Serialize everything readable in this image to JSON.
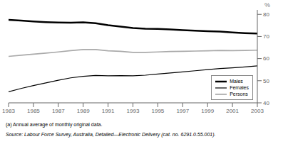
{
  "chart_data": {
    "type": "line",
    "x": [
      1983,
      1984,
      1985,
      1986,
      1987,
      1988,
      1989,
      1990,
      1991,
      1992,
      1993,
      1994,
      1995,
      1996,
      1997,
      1998,
      1999,
      2000,
      2001,
      2002,
      2003
    ],
    "series": [
      {
        "name": "Males",
        "color": "#000000",
        "values": [
          77.5,
          77.2,
          76.8,
          76.5,
          76.3,
          76.2,
          76.4,
          76.0,
          75.1,
          74.5,
          73.8,
          73.5,
          73.4,
          73.2,
          72.9,
          72.6,
          72.4,
          72.2,
          71.8,
          71.5,
          71.3
        ]
      },
      {
        "name": "Females",
        "color": "#000000",
        "values": [
          45.0,
          46.5,
          47.8,
          49.0,
          50.2,
          51.3,
          52.0,
          52.4,
          52.2,
          52.3,
          52.2,
          52.5,
          53.0,
          53.5,
          54.0,
          54.5,
          55.0,
          55.5,
          55.8,
          56.2,
          56.7
        ]
      },
      {
        "name": "Persons",
        "color": "#aaaaaa",
        "values": [
          61.0,
          61.5,
          62.0,
          62.5,
          63.0,
          63.6,
          64.1,
          64.1,
          63.5,
          63.3,
          62.8,
          62.8,
          63.0,
          63.2,
          63.3,
          63.4,
          63.5,
          63.7,
          63.6,
          63.7,
          63.8
        ]
      }
    ],
    "xlim": [
      1983,
      2003
    ],
    "xticks": [
      1983,
      1985,
      1987,
      1989,
      1991,
      1993,
      1995,
      1997,
      1999,
      2001,
      2003
    ],
    "ylim": [
      40,
      82
    ],
    "yticks": [
      40,
      50,
      60,
      70,
      80
    ],
    "y_label": "%",
    "annotations": [
      "(a) Annual average of monthly original data.",
      "Source: Labour Force Survey, Australia, Detailed—Electronic Delivery (cat. no. 6291.0.55.001)."
    ],
    "legend": "lower right",
    "grid": false
  }
}
